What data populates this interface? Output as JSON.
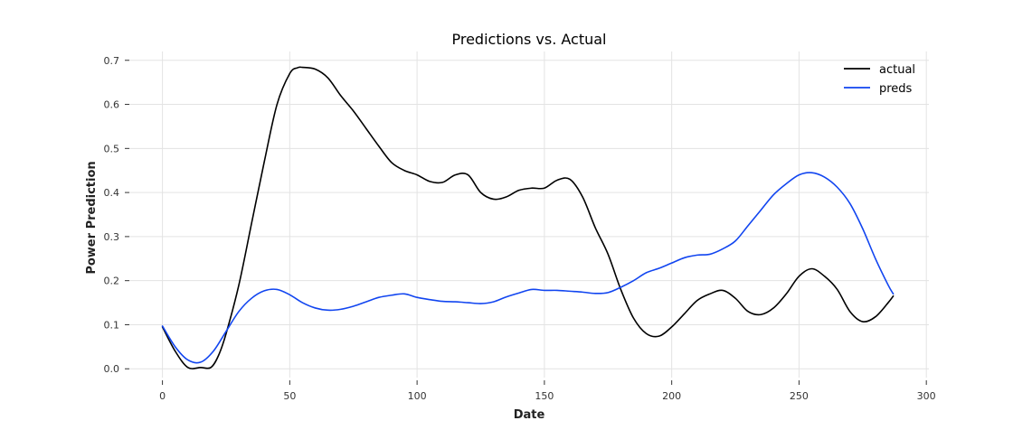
{
  "chart_data": {
    "type": "line",
    "title": "Predictions vs. Actual",
    "xlabel": "Date",
    "ylabel": "Power Prediction",
    "xlim": [
      -13,
      301
    ],
    "ylim": [
      -0.02,
      0.72
    ],
    "xticks": [
      0,
      50,
      100,
      150,
      200,
      250,
      300
    ],
    "yticks": [
      0.0,
      0.1,
      0.2,
      0.3,
      0.4,
      0.5,
      0.6,
      0.7
    ],
    "grid": true,
    "legend_position": "top-right",
    "series": [
      {
        "name": "actual",
        "color": "#000000",
        "x": [
          0,
          5,
          10,
          15,
          19,
          22,
          25,
          30,
          35,
          40,
          45,
          50,
          53,
          55,
          60,
          65,
          70,
          75,
          80,
          85,
          90,
          95,
          100,
          105,
          110,
          115,
          120,
          125,
          130,
          135,
          140,
          145,
          150,
          155,
          160,
          165,
          170,
          175,
          180,
          185,
          190,
          195,
          200,
          205,
          210,
          215,
          220,
          225,
          230,
          235,
          240,
          245,
          250,
          255,
          260,
          265,
          270,
          275,
          280,
          285,
          287
        ],
        "y": [
          0.095,
          0.04,
          0.003,
          0.003,
          0.003,
          0.03,
          0.08,
          0.19,
          0.33,
          0.47,
          0.6,
          0.67,
          0.683,
          0.684,
          0.68,
          0.66,
          0.62,
          0.585,
          0.545,
          0.505,
          0.468,
          0.45,
          0.44,
          0.425,
          0.423,
          0.44,
          0.44,
          0.4,
          0.385,
          0.39,
          0.405,
          0.41,
          0.41,
          0.428,
          0.43,
          0.39,
          0.32,
          0.26,
          0.18,
          0.115,
          0.08,
          0.074,
          0.095,
          0.125,
          0.155,
          0.17,
          0.178,
          0.16,
          0.13,
          0.123,
          0.138,
          0.17,
          0.21,
          0.227,
          0.21,
          0.18,
          0.13,
          0.107,
          0.118,
          0.15,
          0.165
        ]
      },
      {
        "name": "preds",
        "color": "#1145f0",
        "x": [
          0,
          5,
          10,
          15,
          20,
          25,
          30,
          35,
          40,
          45,
          50,
          55,
          60,
          65,
          70,
          75,
          80,
          85,
          90,
          95,
          100,
          105,
          110,
          115,
          120,
          125,
          130,
          135,
          140,
          145,
          150,
          155,
          160,
          165,
          170,
          175,
          180,
          185,
          190,
          195,
          200,
          205,
          210,
          215,
          220,
          225,
          230,
          235,
          240,
          245,
          250,
          255,
          260,
          265,
          270,
          275,
          280,
          285,
          287
        ],
        "y": [
          0.097,
          0.05,
          0.02,
          0.015,
          0.04,
          0.085,
          0.13,
          0.16,
          0.177,
          0.18,
          0.168,
          0.15,
          0.138,
          0.133,
          0.135,
          0.142,
          0.152,
          0.162,
          0.167,
          0.17,
          0.162,
          0.157,
          0.153,
          0.152,
          0.15,
          0.148,
          0.152,
          0.163,
          0.172,
          0.18,
          0.178,
          0.178,
          0.176,
          0.174,
          0.171,
          0.173,
          0.185,
          0.2,
          0.218,
          0.228,
          0.24,
          0.252,
          0.258,
          0.26,
          0.272,
          0.29,
          0.325,
          0.36,
          0.395,
          0.42,
          0.44,
          0.445,
          0.435,
          0.412,
          0.375,
          0.318,
          0.25,
          0.19,
          0.17
        ]
      }
    ]
  }
}
